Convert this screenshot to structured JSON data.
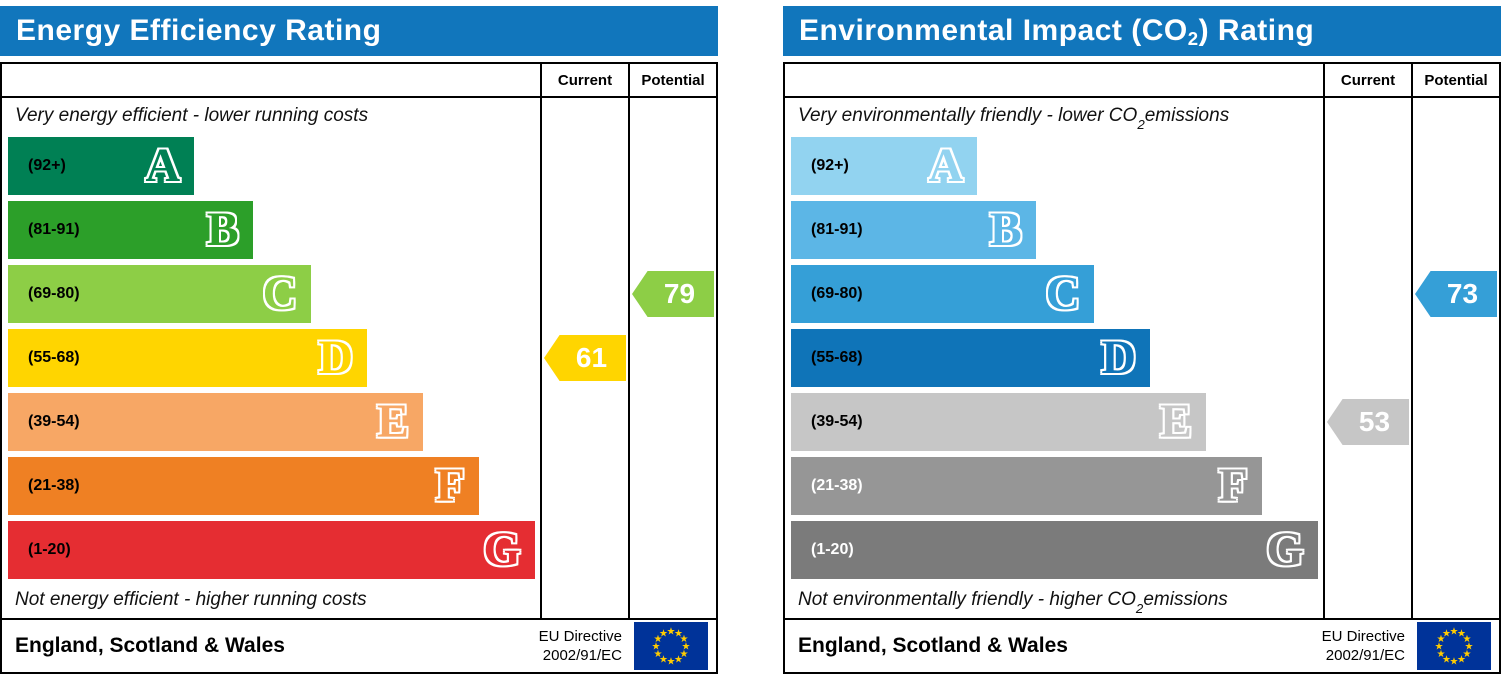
{
  "chart_data": [
    {
      "type": "bar",
      "title": "Energy Efficiency Rating",
      "categories": [
        "A",
        "B",
        "C",
        "D",
        "E",
        "F",
        "G"
      ],
      "band_ranges": [
        "92+",
        "81-91",
        "69-80",
        "55-68",
        "39-54",
        "21-38",
        "1-20"
      ],
      "band_colors": [
        "#008054",
        "#2c9f29",
        "#8dce46",
        "#ffd500",
        "#f7a765",
        "#ef8023",
        "#e52d32"
      ],
      "series": [
        {
          "name": "Current",
          "value": 61,
          "band": "D",
          "color": "#ffd500"
        },
        {
          "name": "Potential",
          "value": 79,
          "band": "C",
          "color": "#8dce46"
        }
      ],
      "scale_min": 1,
      "scale_max": 100,
      "top_label": "Very energy efficient - lower running costs",
      "bottom_label": "Not energy efficient - higher running costs",
      "footer": "England, Scotland & Wales — EU Directive 2002/91/EC"
    },
    {
      "type": "bar",
      "title": "Environmental Impact (CO2) Rating",
      "categories": [
        "A",
        "B",
        "C",
        "D",
        "E",
        "F",
        "G"
      ],
      "band_ranges": [
        "92+",
        "81-91",
        "69-80",
        "55-68",
        "39-54",
        "21-38",
        "1-20"
      ],
      "band_colors": [
        "#92d3f0",
        "#5cb6e6",
        "#359fd7",
        "#0f74b8",
        "#c6c6c6",
        "#969696",
        "#7b7b7b"
      ],
      "series": [
        {
          "name": "Current",
          "value": 53,
          "band": "E",
          "color": "#c6c6c6"
        },
        {
          "name": "Potential",
          "value": 73,
          "band": "C",
          "color": "#359fd7"
        }
      ],
      "scale_min": 1,
      "scale_max": 100,
      "top_label": "Very environmentally friendly - lower CO2 emissions",
      "bottom_label": "Not environmentally friendly - higher CO2 emissions",
      "footer": "England, Scotland & Wales — EU Directive 2002/91/EC"
    }
  ],
  "panels": [
    {
      "title": {
        "pre": "Energy Efficiency Rating",
        "sub": "",
        "post": ""
      },
      "columns": {
        "current": "Current",
        "potential": "Potential"
      },
      "captions": {
        "top": {
          "pre": "Very energy efficient - lower running costs",
          "sub": "",
          "post": ""
        },
        "bottom": {
          "pre": "Not energy efficient - higher running costs",
          "sub": "",
          "post": ""
        }
      },
      "bands": [
        {
          "letter": "A",
          "range": "(92+)",
          "color": "#008054",
          "width_pct": 35,
          "label_color": "#000000"
        },
        {
          "letter": "B",
          "range": "(81-91)",
          "color": "#2c9f29",
          "width_pct": 46,
          "label_color": "#000000"
        },
        {
          "letter": "C",
          "range": "(69-80)",
          "color": "#8dce46",
          "width_pct": 57,
          "label_color": "#000000"
        },
        {
          "letter": "D",
          "range": "(55-68)",
          "color": "#ffd500",
          "width_pct": 67.5,
          "label_color": "#000000"
        },
        {
          "letter": "E",
          "range": "(39-54)",
          "color": "#f7a765",
          "width_pct": 78,
          "label_color": "#000000"
        },
        {
          "letter": "F",
          "range": "(21-38)",
          "color": "#ef8023",
          "width_pct": 88.5,
          "label_color": "#000000"
        },
        {
          "letter": "G",
          "range": "(1-20)",
          "color": "#e52d32",
          "width_pct": 99,
          "label_color": "#000000"
        }
      ],
      "current": {
        "value": "61",
        "band_index": 3,
        "color": "#ffd500"
      },
      "potential": {
        "value": "79",
        "band_index": 2,
        "color": "#8dce46"
      },
      "footer": {
        "region": "England, Scotland & Wales",
        "directive_line1": "EU Directive",
        "directive_line2": "2002/91/EC"
      }
    },
    {
      "title": {
        "pre": "Environmental Impact (CO",
        "sub": "2",
        "post": ") Rating"
      },
      "columns": {
        "current": "Current",
        "potential": "Potential"
      },
      "captions": {
        "top": {
          "pre": "Very environmentally friendly - lower CO",
          "sub": "2",
          "post": " emissions"
        },
        "bottom": {
          "pre": "Not environmentally friendly - higher CO",
          "sub": "2",
          "post": " emissions"
        }
      },
      "bands": [
        {
          "letter": "A",
          "range": "(92+)",
          "color": "#92d3f0",
          "width_pct": 35,
          "label_color": "#000000"
        },
        {
          "letter": "B",
          "range": "(81-91)",
          "color": "#5cb6e6",
          "width_pct": 46,
          "label_color": "#000000"
        },
        {
          "letter": "C",
          "range": "(69-80)",
          "color": "#359fd7",
          "width_pct": 57,
          "label_color": "#000000"
        },
        {
          "letter": "D",
          "range": "(55-68)",
          "color": "#0f74b8",
          "width_pct": 67.5,
          "label_color": "#000000"
        },
        {
          "letter": "E",
          "range": "(39-54)",
          "color": "#c6c6c6",
          "width_pct": 78,
          "label_color": "#000000"
        },
        {
          "letter": "F",
          "range": "(21-38)",
          "color": "#969696",
          "width_pct": 88.5,
          "label_color": "#ffffff"
        },
        {
          "letter": "G",
          "range": "(1-20)",
          "color": "#7b7b7b",
          "width_pct": 99,
          "label_color": "#ffffff"
        }
      ],
      "current": {
        "value": "53",
        "band_index": 4,
        "color": "#c6c6c6"
      },
      "potential": {
        "value": "73",
        "band_index": 2,
        "color": "#359fd7"
      },
      "footer": {
        "region": "England, Scotland & Wales",
        "directive_line1": "EU Directive",
        "directive_line2": "2002/91/EC"
      }
    }
  ]
}
